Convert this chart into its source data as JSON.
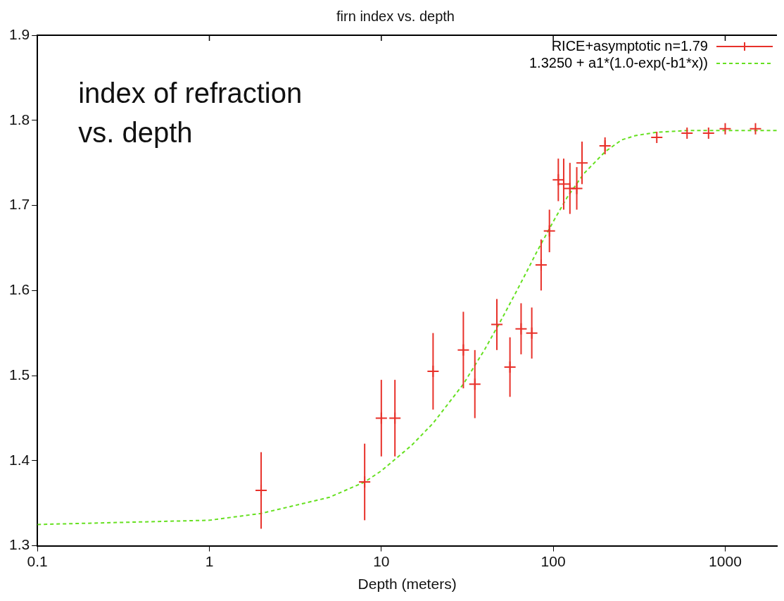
{
  "chart_data": {
    "type": "scatter",
    "title": "firn index vs. depth",
    "xlabel": "Depth (meters)",
    "log": "x",
    "xlim": [
      0.1,
      2000
    ],
    "xticks": [
      0.1,
      1,
      10,
      100,
      1000
    ],
    "ylim": [
      1.3,
      1.9
    ],
    "yticks": [
      1.3,
      1.4,
      1.5,
      1.6,
      1.7,
      1.8,
      1.9
    ],
    "grid": false,
    "legend": "top right",
    "annotations": [
      "index of refraction\nvs. depth"
    ],
    "series": [
      {
        "name": "RICE+asymptotic n=1.79",
        "marker": "cross",
        "color": "#e8312a",
        "x": [
          2,
          8,
          10,
          12,
          20,
          30,
          35,
          47,
          56,
          65,
          75,
          85,
          95,
          107,
          115,
          125,
          137,
          147,
          200,
          400,
          600,
          800,
          1000,
          1500
        ],
        "values": [
          1.365,
          1.375,
          1.45,
          1.45,
          1.505,
          1.53,
          1.49,
          1.56,
          1.51,
          1.555,
          1.55,
          1.63,
          1.67,
          1.73,
          1.725,
          1.72,
          1.72,
          1.75,
          1.77,
          1.78,
          1.785,
          1.785,
          1.79,
          1.79
        ],
        "errors": [
          0.045,
          0.045,
          0.045,
          0.045,
          0.045,
          0.045,
          0.04,
          0.03,
          0.035,
          0.03,
          0.03,
          0.03,
          0.025,
          0.025,
          0.03,
          0.03,
          0.025,
          0.025,
          0.01,
          null,
          null,
          null,
          null,
          null
        ]
      },
      {
        "name": "1.3250 + a1*(1.0-exp(-b1*x))",
        "type": "line",
        "marker": "none",
        "line_style": "dashed",
        "color": "#66e020",
        "x": [
          0.1,
          1,
          2,
          5,
          8,
          10,
          15,
          20,
          30,
          40,
          50,
          60,
          70,
          80,
          100,
          120,
          150,
          200,
          250,
          300,
          400,
          600,
          1000,
          2000
        ],
        "values": [
          1.325,
          1.33,
          1.338,
          1.357,
          1.375,
          1.388,
          1.418,
          1.444,
          1.49,
          1.531,
          1.566,
          1.596,
          1.622,
          1.645,
          1.681,
          1.709,
          1.737,
          1.763,
          1.777,
          1.782,
          1.786,
          1.788,
          1.788,
          1.788
        ]
      }
    ]
  }
}
